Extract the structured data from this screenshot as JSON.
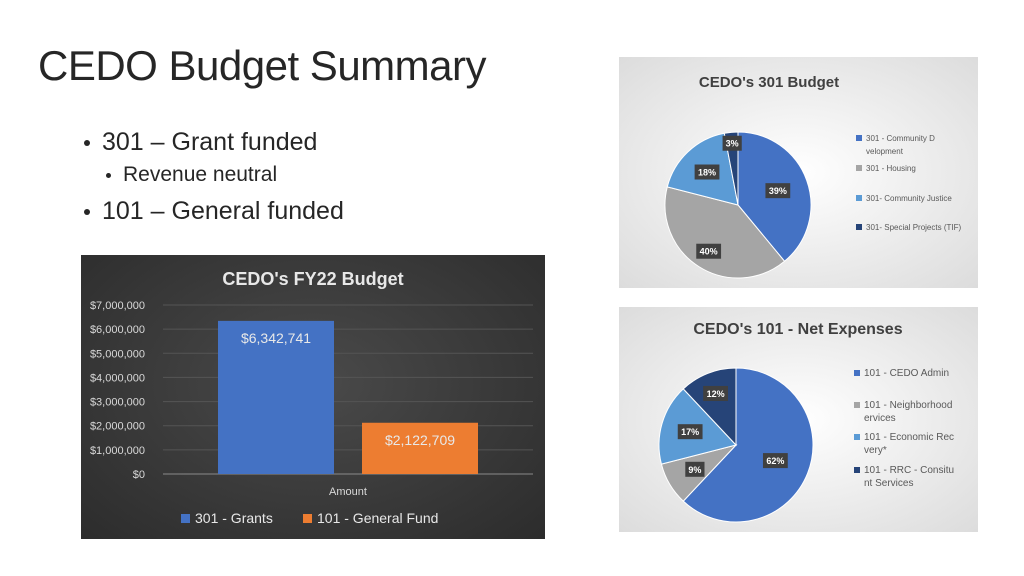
{
  "slide": {
    "title": "CEDO Budget Summary",
    "bullets": [
      {
        "text": "301 – Grant funded",
        "sub": [
          "Revenue neutral"
        ]
      },
      {
        "text": "101 – General funded"
      }
    ]
  },
  "chart_data": [
    {
      "type": "bar",
      "title": "CEDO's FY22 Budget",
      "xlabel": "Amount",
      "categories": [
        "Amount"
      ],
      "series": [
        {
          "name": "301 - Grants",
          "values": [
            6342741
          ],
          "label": "$6,342,741",
          "color": "#4472c4"
        },
        {
          "name": "101 - General Fund",
          "values": [
            2122709
          ],
          "label": "$2,122,709",
          "color": "#ed7d31"
        }
      ],
      "ylim": [
        0,
        7000000
      ],
      "yticks": [
        "$0",
        "$1,000,000",
        "$2,000,000",
        "$3,000,000",
        "$4,000,000",
        "$5,000,000",
        "$6,000,000",
        "$7,000,000"
      ],
      "legend": "bottom",
      "grid": true
    },
    {
      "type": "pie",
      "title": "CEDO's 301 Budget",
      "slices": [
        {
          "name": "301 - Community Development",
          "value": 39,
          "label": "39%",
          "color": "#4472c4"
        },
        {
          "name": "301 - Housing",
          "value": 40,
          "label": "40%",
          "color": "#a5a5a5"
        },
        {
          "name": "301- Community Justice",
          "value": 18,
          "label": "18%",
          "color": "#5b9bd5"
        },
        {
          "name": "301- Special Projects (TIF)",
          "value": 3,
          "label": "3%",
          "color": "#264478"
        }
      ],
      "legend": "right"
    },
    {
      "type": "pie",
      "title": "CEDO's 101 - Net Expenses",
      "slices": [
        {
          "name": "101 - CEDO Admin",
          "value": 62,
          "label": "62%",
          "color": "#4472c4"
        },
        {
          "name": "101 - Neighborhood Services",
          "value": 9,
          "label": "9%",
          "color": "#a5a5a5"
        },
        {
          "name": "101 - Economic Recovery*",
          "value": 17,
          "label": "17%",
          "color": "#5b9bd5"
        },
        {
          "name": "101 - RRC - Consituent Services",
          "value": 12,
          "label": "12%",
          "color": "#264478"
        }
      ],
      "legend": "right"
    }
  ]
}
